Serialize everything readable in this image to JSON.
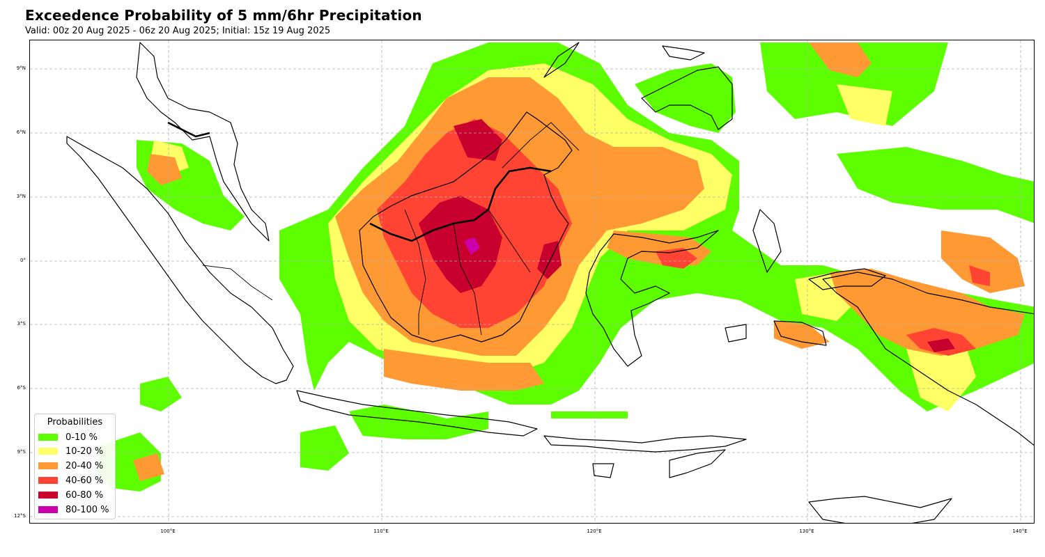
{
  "title": "Exceedence Probability of 5 mm/6hr Precipitation",
  "subtitle": "Valid: 00z 20 Aug 2025 - 06z 20 Aug 2025; Initial: 15z 19 Aug 2025",
  "lat_ticks": [
    "9°N",
    "6°N",
    "3°N",
    "0°",
    "3°S",
    "6°S",
    "9°S",
    "12°S"
  ],
  "lon_ticks": [
    "100°E",
    "110°E",
    "120°E",
    "130°E",
    "140°E"
  ],
  "legend": {
    "title": "Probabilities",
    "items": [
      {
        "label": "0-10 %",
        "color": "#5dff00"
      },
      {
        "label": "10-20 %",
        "color": "#ffff66"
      },
      {
        "label": "20-40 %",
        "color": "#ff9933"
      },
      {
        "label": "40-60 %",
        "color": "#ff4433"
      },
      {
        "label": "60-80 %",
        "color": "#c8002d"
      },
      {
        "label": "80-100 %",
        "color": "#cc00aa"
      }
    ]
  }
}
